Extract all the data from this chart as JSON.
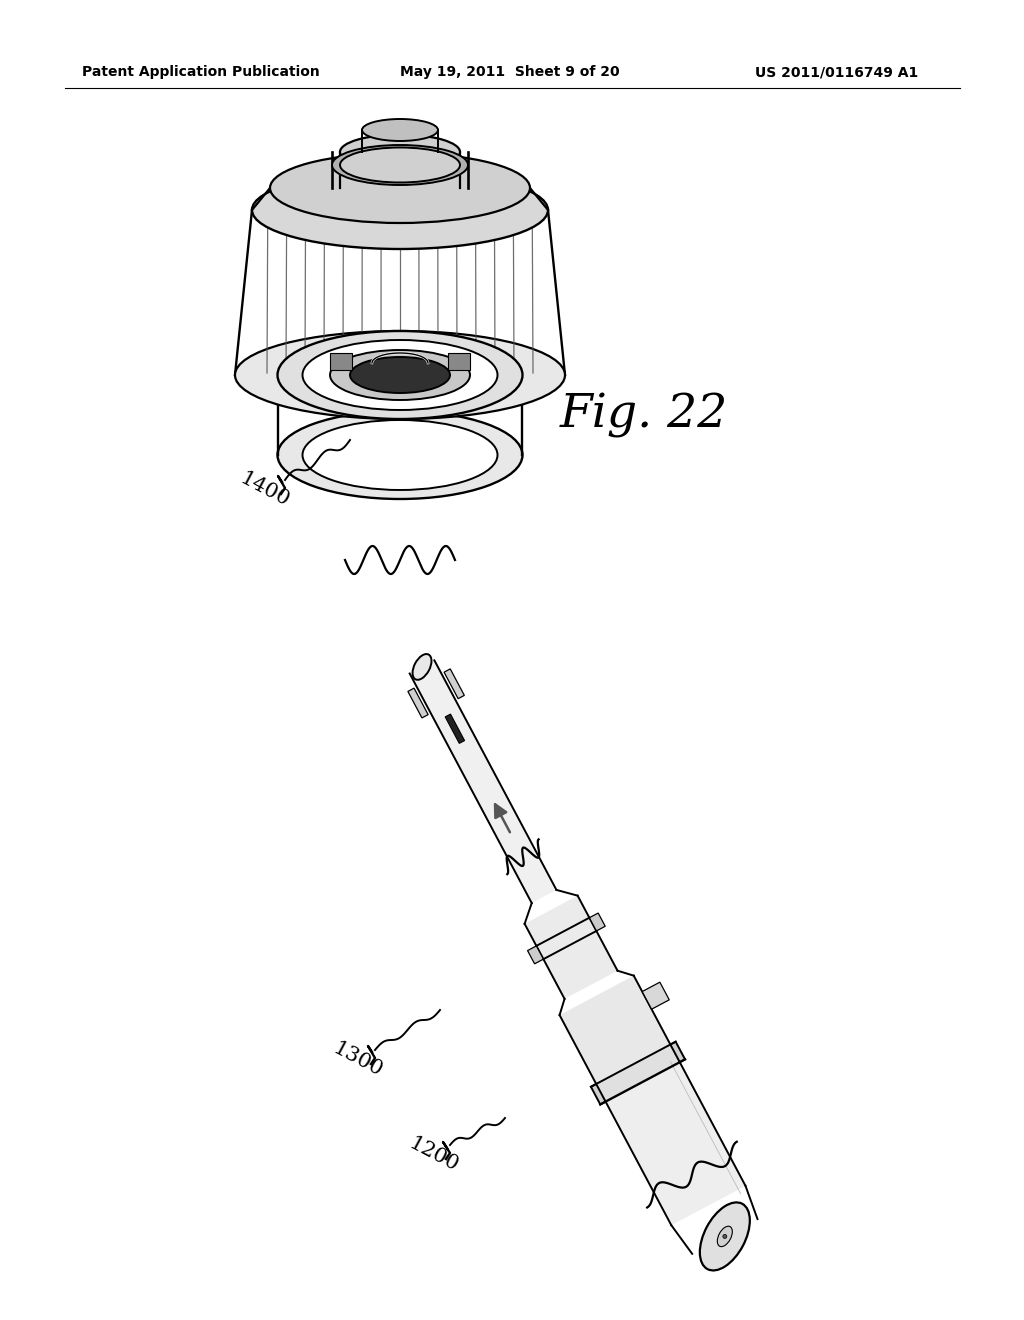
{
  "background_color": "#ffffff",
  "header_left": "Patent Application Publication",
  "header_center": "May 19, 2011  Sheet 9 of 20",
  "header_right": "US 2011/0116749 A1",
  "fig_label": "Fig. 22",
  "label_1400": "1400",
  "label_1300": "1300",
  "label_1200": "1200",
  "header_fontsize": 10,
  "label_fontsize": 15,
  "fig_label_fontsize": 34,
  "line_color": "#000000",
  "fill_white": "#ffffff",
  "fill_light": "#f0f0f0",
  "fill_mid": "#d8d8d8"
}
